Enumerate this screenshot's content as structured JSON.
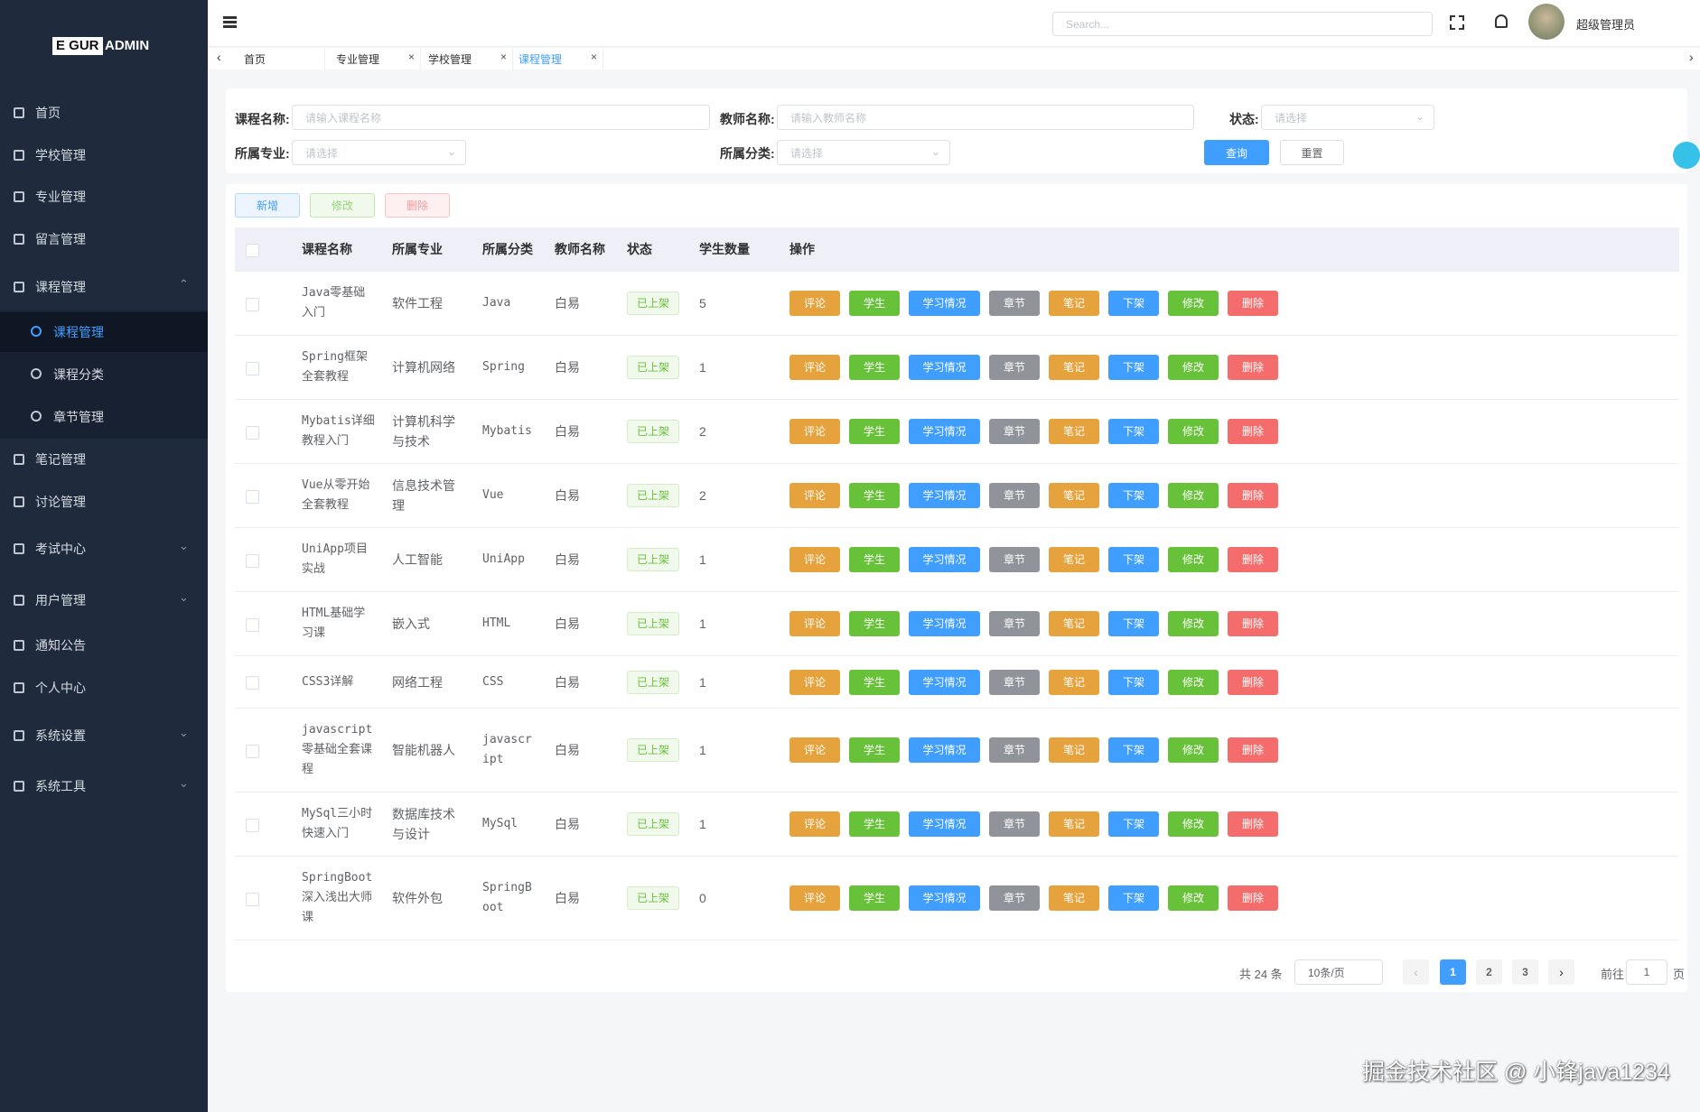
{
  "sidebar": {
    "logo_box": "E GUR",
    "logo_text": "ADMIN",
    "menu": [
      "首页",
      "学校管理",
      "专业管理",
      "留言管理",
      "课程管理",
      "笔记管理",
      "讨论管理",
      "考试中心",
      "用户管理",
      "通知公告",
      "个人中心",
      "系统设置",
      "系统工具"
    ],
    "submenu": [
      "课程管理",
      "课程分类",
      "章节管理"
    ]
  },
  "header": {
    "search_placeholder": "Search...",
    "user": "超级管理员"
  },
  "tabs": [
    "首页",
    "专业管理",
    "学校管理",
    "课程管理"
  ],
  "filters": {
    "course_label": "课程名称:",
    "course_placeholder": "请输入课程名称",
    "teacher_label": "教师名称:",
    "teacher_placeholder": "请输入教师名称",
    "status_label": "状态:",
    "status_placeholder": "请选择",
    "major_label": "所属专业:",
    "major_placeholder": "请选择",
    "category_label": "所属分类:",
    "category_placeholder": "请选择",
    "query": "查询",
    "reset": "重置"
  },
  "toolbar": [
    "新增",
    "修改",
    "删除"
  ],
  "table": {
    "columns": [
      "课程名称",
      "所属专业",
      "所属分类",
      "教师名称",
      "状态",
      "学生数量",
      "操作"
    ],
    "rows": [
      [
        "Java零基础入门",
        "软件工程",
        "Java",
        "白易",
        "已上架",
        5
      ],
      [
        "Spring框架全套教程",
        "计算机网络",
        "Spring",
        "白易",
        "已上架",
        1
      ],
      [
        "Mybatis详细教程入门",
        "计算机科学与技术",
        "Mybatis",
        "白易",
        "已上架",
        2
      ],
      [
        "Vue从零开始全套教程",
        "信息技术管理",
        "Vue",
        "白易",
        "已上架",
        2
      ],
      [
        "UniApp项目实战",
        "人工智能",
        "UniApp",
        "白易",
        "已上架",
        1
      ],
      [
        "HTML基础学习课",
        "嵌入式",
        "HTML",
        "白易",
        "已上架",
        1
      ],
      [
        "CSS3详解",
        "网络工程",
        "CSS",
        "白易",
        "已上架",
        1
      ],
      [
        "javascript零基础全套课程",
        "智能机器人",
        "javascript",
        "白易",
        "已上架",
        1
      ],
      [
        "MySql三小时快速入门",
        "数据库技术与设计",
        "MySql",
        "白易",
        "已上架",
        1
      ],
      [
        "SpringBoot深入浅出大师课",
        "软件外包",
        "SpringBoot",
        "白易",
        "已上架",
        0
      ]
    ],
    "actions": [
      "评论",
      "学生",
      "学习情况",
      "章节",
      "笔记",
      "下架",
      "修改",
      "删除"
    ]
  },
  "pagination": {
    "total": "共 24 条",
    "page_size": "10条/页",
    "pages": [
      1,
      2,
      3
    ],
    "goto": "前往",
    "goto_value": 1,
    "page_unit": "页"
  },
  "watermark": "掘金技术社区 @ 小锋java1234"
}
